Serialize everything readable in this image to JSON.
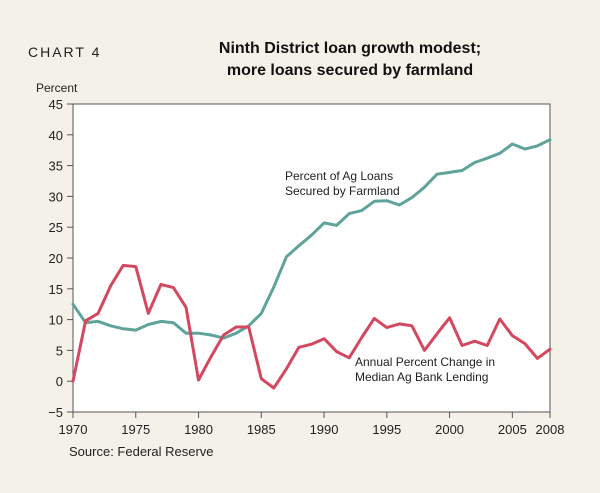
{
  "header": {
    "chart_label": "CHART 4",
    "title_line1": "Ninth District loan growth modest;",
    "title_line2": "more loans secured by farmland"
  },
  "source": "Source: Federal Reserve",
  "colors": {
    "background": "#f3f1e8",
    "plot_background": "#ffffff",
    "farmland_series": "#5fa39a",
    "lending_series": "#d4485f"
  },
  "chart_data": {
    "type": "line",
    "ylabel": "Percent",
    "ylim": [
      -5,
      45
    ],
    "xlim": [
      1970,
      2008
    ],
    "yticks": [
      -5,
      0,
      5,
      10,
      15,
      20,
      25,
      30,
      35,
      40,
      45
    ],
    "xticks": [
      1970,
      1975,
      1980,
      1985,
      1990,
      1995,
      2000,
      2005,
      2008
    ],
    "grid": false,
    "series": [
      {
        "name": "Percent of Ag Loans Secured by Farmland",
        "label_lines": [
          "Percent of Ag Loans",
          "Secured by Farmland"
        ],
        "color": "#5fa39a",
        "x": [
          1970,
          1971,
          1972,
          1973,
          1974,
          1975,
          1976,
          1977,
          1978,
          1979,
          1980,
          1981,
          1982,
          1983,
          1984,
          1985,
          1986,
          1987,
          1988,
          1989,
          1990,
          1991,
          1992,
          1993,
          1994,
          1995,
          1996,
          1997,
          1998,
          1999,
          2000,
          2001,
          2002,
          2003,
          2004,
          2005,
          2006,
          2007,
          2008
        ],
        "values": [
          12.5,
          9.5,
          9.7,
          9.0,
          8.5,
          8.3,
          9.2,
          9.7,
          9.5,
          7.8,
          7.8,
          7.5,
          7.0,
          7.8,
          9.0,
          11.0,
          15.3,
          20.2,
          22.0,
          23.7,
          25.7,
          25.3,
          27.2,
          27.7,
          29.2,
          29.3,
          28.6,
          29.8,
          31.5,
          33.6,
          33.9,
          34.2,
          35.5,
          36.2,
          37.0,
          38.5,
          37.7,
          38.2,
          39.2
        ]
      },
      {
        "name": "Annual Percent Change in Median Ag Bank Lending",
        "label_lines": [
          "Annual Percent Change in",
          "Median Ag Bank Lending"
        ],
        "color": "#d4485f",
        "x": [
          1970,
          1971,
          1972,
          1973,
          1974,
          1975,
          1976,
          1977,
          1978,
          1979,
          1980,
          1981,
          1982,
          1983,
          1984,
          1985,
          1986,
          1987,
          1988,
          1989,
          1990,
          1991,
          1992,
          1993,
          1994,
          1995,
          1996,
          1997,
          1998,
          1999,
          2000,
          2001,
          2002,
          2003,
          2004,
          2005,
          2006,
          2007,
          2008
        ],
        "values": [
          0.0,
          9.8,
          11.0,
          15.5,
          18.8,
          18.6,
          11.0,
          15.7,
          15.2,
          12.0,
          0.2,
          4.0,
          7.5,
          8.8,
          8.8,
          0.4,
          -1.1,
          2.0,
          5.5,
          6.0,
          6.9,
          4.8,
          3.8,
          7.1,
          10.2,
          8.7,
          9.3,
          9.0,
          5.0,
          7.7,
          10.3,
          5.8,
          6.5,
          5.8,
          10.1,
          7.4,
          6.1,
          3.7,
          5.2
        ]
      }
    ]
  }
}
